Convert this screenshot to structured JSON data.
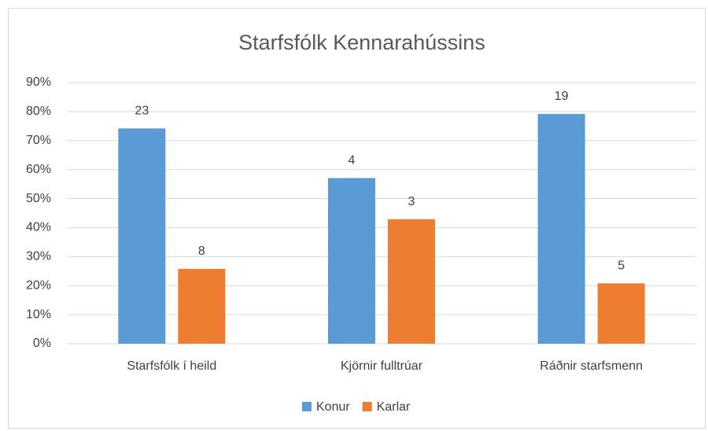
{
  "chart_data": {
    "type": "bar",
    "title": "Starfsfólk Kennarahússins",
    "categories": [
      "Starfsfólk í heild",
      "Kjörnir fulltrúar",
      "Ráðnir starfsmenn"
    ],
    "series": [
      {
        "name": "Konur",
        "color": "#5b9bd5",
        "values": [
          74.2,
          57.1,
          79.2
        ],
        "counts": [
          23,
          4,
          19
        ]
      },
      {
        "name": "Karlar",
        "color": "#ed7d31",
        "values": [
          25.8,
          42.9,
          20.8
        ],
        "counts": [
          8,
          3,
          5
        ]
      }
    ],
    "ylim": [
      0,
      90
    ],
    "yticks": [
      {
        "value": 0,
        "label": "0%"
      },
      {
        "value": 10,
        "label": "10%"
      },
      {
        "value": 20,
        "label": "20%"
      },
      {
        "value": 30,
        "label": "30%"
      },
      {
        "value": 40,
        "label": "40%"
      },
      {
        "value": 50,
        "label": "50%"
      },
      {
        "value": 60,
        "label": "60%"
      },
      {
        "value": 70,
        "label": "70%"
      },
      {
        "value": 80,
        "label": "80%"
      },
      {
        "value": 90,
        "label": "90%"
      }
    ],
    "grid": true,
    "legend": "bottom"
  }
}
